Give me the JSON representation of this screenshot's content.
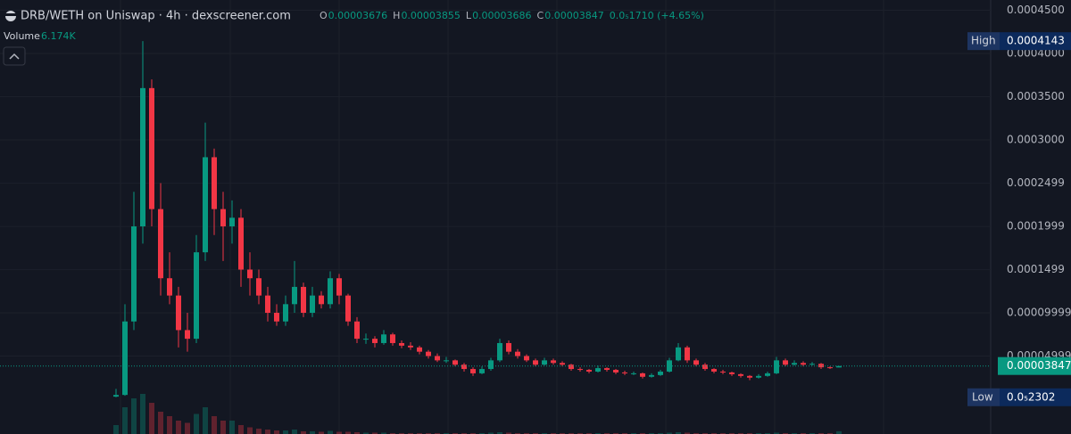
{
  "chart_data": {
    "type": "candlestick",
    "title": "DRB/WETH on Uniswap · 4h · dexscreener.com",
    "legend": {
      "open": {
        "label": "O",
        "value": 3.676e-05
      },
      "high": {
        "label": "H",
        "value": 3.855e-05
      },
      "low": {
        "label": "L",
        "value": 3.686e-05
      },
      "close": {
        "label": "C",
        "value": 3.847e-05
      },
      "change": "0.0₅1710 (+4.65%)"
    },
    "volume_label": {
      "name": "Volume",
      "value": "6.174K"
    },
    "ylim": [
      -4.02e-05,
      0.0004619
    ],
    "yticks": [
      {
        "value": 0.00045,
        "label": "0.0004500"
      },
      {
        "value": 0.0004,
        "label": "0.0004000"
      },
      {
        "value": 0.00035,
        "label": "0.0003500"
      },
      {
        "value": 0.0003,
        "label": "0.0003000"
      },
      {
        "value": 0.0002499,
        "label": "0.0002499"
      },
      {
        "value": 0.0001999,
        "label": "0.0001999"
      },
      {
        "value": 0.0001499,
        "label": "0.0001499"
      },
      {
        "value": 9.999e-05,
        "label": "0.00009999"
      },
      {
        "value": 4.999e-05,
        "label": "0.00004999"
      }
    ],
    "grid": true,
    "up_color": "#089981",
    "down_color": "#f23645",
    "markers": {
      "high": {
        "name": "High",
        "value": 0.0004143
      },
      "last": {
        "value": 3.847e-05
      },
      "low": {
        "name": "Low",
        "value": 2.302e-06,
        "value_label": "0.0₅2302"
      }
    },
    "vlim": [
      0,
      100
    ],
    "candles": [
      [
        3e-06,
        1.2e-05,
        2.302e-06,
        5e-06
      ],
      [
        5e-06,
        0.00011,
        4e-06,
        9e-05
      ],
      [
        9e-05,
        0.00024,
        8e-05,
        0.0002
      ],
      [
        0.0002,
        0.0004143,
        0.00018,
        0.00036
      ],
      [
        0.00036,
        0.00037,
        0.0002,
        0.00022
      ],
      [
        0.00022,
        0.00025,
        0.00012,
        0.00014
      ],
      [
        0.00014,
        0.00017,
        0.00011,
        0.00012
      ],
      [
        0.00012,
        0.00013,
        6e-05,
        8e-05
      ],
      [
        8e-05,
        0.0001,
        5.5e-05,
        7e-05
      ],
      [
        7e-05,
        0.00019,
        6.5e-05,
        0.00017
      ],
      [
        0.00017,
        0.00032,
        0.00016,
        0.00028
      ],
      [
        0.00028,
        0.00029,
        0.00019,
        0.00022
      ],
      [
        0.00022,
        0.00024,
        0.00016,
        0.0002
      ],
      [
        0.0002,
        0.00023,
        0.00018,
        0.00021
      ],
      [
        0.00021,
        0.00022,
        0.00013,
        0.00015
      ],
      [
        0.00015,
        0.00017,
        0.00012,
        0.00014
      ],
      [
        0.00014,
        0.00015,
        0.00011,
        0.00012
      ],
      [
        0.00012,
        0.00013,
        9e-05,
        0.0001
      ],
      [
        0.0001,
        0.00011,
        8.5e-05,
        9e-05
      ],
      [
        9e-05,
        0.00012,
        8.5e-05,
        0.00011
      ],
      [
        0.00011,
        0.00016,
        0.0001,
        0.00013
      ],
      [
        0.00013,
        0.000135,
        9.5e-05,
        0.0001
      ],
      [
        0.0001,
        0.00013,
        9.5e-05,
        0.00012
      ],
      [
        0.00012,
        0.000125,
        0.000105,
        0.00011
      ],
      [
        0.00011,
        0.000148,
        0.000105,
        0.00014
      ],
      [
        0.00014,
        0.000145,
        0.00011,
        0.00012
      ],
      [
        0.00012,
        0.000122,
        8.5e-05,
        9e-05
      ],
      [
        9e-05,
        9.5e-05,
        6.5e-05,
        7e-05
      ],
      [
        7e-05,
        7.6e-05,
        6.4e-05,
        7e-05
      ],
      [
        7e-05,
        7.3e-05,
        6e-05,
        6.5e-05
      ],
      [
        6.5e-05,
        8e-05,
        6.3e-05,
        7.5e-05
      ],
      [
        7.5e-05,
        7.7e-05,
        6.2e-05,
        6.5e-05
      ],
      [
        6.5e-05,
        6.8e-05,
        5.9e-05,
        6.2e-05
      ],
      [
        6.2e-05,
        6.6e-05,
        5.7e-05,
        6e-05
      ],
      [
        6e-05,
        6.2e-05,
        5.2e-05,
        5.5e-05
      ],
      [
        5.5e-05,
        5.7e-05,
        4.7e-05,
        5e-05
      ],
      [
        5e-05,
        5.3e-05,
        4.3e-05,
        4.5e-05
      ],
      [
        4.5e-05,
        4.9e-05,
        4.2e-05,
        4.5e-05
      ],
      [
        4.5e-05,
        4.6e-05,
        3.8e-05,
        4e-05
      ],
      [
        4e-05,
        4.2e-05,
        3.2e-05,
        3.5e-05
      ],
      [
        3.5e-05,
        3.7e-05,
        2.7e-05,
        3e-05
      ],
      [
        3e-05,
        3.8e-05,
        2.9e-05,
        3.5e-05
      ],
      [
        3.5e-05,
        4.8e-05,
        3.3e-05,
        4.5e-05
      ],
      [
        4.5e-05,
        7e-05,
        4.3e-05,
        6.5e-05
      ],
      [
        6.5e-05,
        6.8e-05,
        5.2e-05,
        5.5e-05
      ],
      [
        5.5e-05,
        5.8e-05,
        4.7e-05,
        5e-05
      ],
      [
        5e-05,
        5.2e-05,
        4.3e-05,
        4.5e-05
      ],
      [
        4.5e-05,
        4.7e-05,
        3.8e-05,
        4e-05
      ],
      [
        4e-05,
        4.8e-05,
        3.9e-05,
        4.5e-05
      ],
      [
        4.5e-05,
        4.7e-05,
        4e-05,
        4.2e-05
      ],
      [
        4.2e-05,
        4.4e-05,
        3.8e-05,
        4e-05
      ],
      [
        4e-05,
        4.1e-05,
        3.3e-05,
        3.5e-05
      ],
      [
        3.5e-05,
        3.7e-05,
        3.2e-05,
        3.4e-05
      ],
      [
        3.4e-05,
        3.5e-05,
        3e-05,
        3.2e-05
      ],
      [
        3.2e-05,
        3.9e-05,
        3.1e-05,
        3.6e-05
      ],
      [
        3.6e-05,
        3.7e-05,
        3.2e-05,
        3.4e-05
      ],
      [
        3.4e-05,
        3.5e-05,
        2.9e-05,
        3.1e-05
      ],
      [
        3.1e-05,
        3.3e-05,
        2.8e-05,
        3e-05
      ],
      [
        3e-05,
        3.2e-05,
        2.8e-05,
        3e-05
      ],
      [
        3e-05,
        3.1e-05,
        2.4e-05,
        2.6e-05
      ],
      [
        2.6e-05,
        3e-05,
        2.5e-05,
        2.8e-05
      ],
      [
        2.8e-05,
        3.4e-05,
        2.7e-05,
        3.2e-05
      ],
      [
        3.2e-05,
        4.8e-05,
        3.1e-05,
        4.5e-05
      ],
      [
        4.5e-05,
        6.5e-05,
        4.4e-05,
        6e-05
      ],
      [
        6e-05,
        6.2e-05,
        4.2e-05,
        4.5e-05
      ],
      [
        4.5e-05,
        4.7e-05,
        3.8e-05,
        4e-05
      ],
      [
        4e-05,
        4.2e-05,
        3.3e-05,
        3.5e-05
      ],
      [
        3.5e-05,
        3.6e-05,
        3e-05,
        3.2e-05
      ],
      [
        3.2e-05,
        3.4e-05,
        2.9e-05,
        3.1e-05
      ],
      [
        3.1e-05,
        3.2e-05,
        2.7e-05,
        2.9e-05
      ],
      [
        2.9e-05,
        3e-05,
        2.5e-05,
        2.7e-05
      ],
      [
        2.7e-05,
        2.8e-05,
        2.2e-05,
        2.5e-05
      ],
      [
        2.5e-05,
        2.9e-05,
        2.4e-05,
        2.7e-05
      ],
      [
        2.7e-05,
        3.2e-05,
        2.6e-05,
        3e-05
      ],
      [
        3e-05,
        4.9e-05,
        2.9e-05,
        4.5e-05
      ],
      [
        4.5e-05,
        4.7e-05,
        3.8e-05,
        4e-05
      ],
      [
        4e-05,
        4.5e-05,
        3.9e-05,
        4.2e-05
      ],
      [
        4.2e-05,
        4.4e-05,
        3.8e-05,
        4e-05
      ],
      [
        4e-05,
        4.3e-05,
        3.9e-05,
        4.1e-05
      ],
      [
        4.1e-05,
        4.2e-05,
        3.5e-05,
        3.7e-05
      ],
      [
        3.7e-05,
        3.8e-05,
        3.5e-05,
        3.676e-05
      ],
      [
        3.676e-05,
        3.855e-05,
        3.686e-05,
        3.847e-05
      ]
    ],
    "volumes": [
      20,
      60,
      80,
      90,
      70,
      50,
      40,
      30,
      25,
      45,
      60,
      40,
      30,
      30,
      20,
      15,
      12,
      10,
      8,
      8,
      10,
      6,
      6,
      5,
      7,
      5,
      5,
      4,
      3,
      3,
      3,
      2,
      2,
      2,
      2,
      2,
      2,
      2,
      2,
      2,
      2,
      2,
      3,
      4,
      3,
      2,
      2,
      2,
      2,
      2,
      2,
      2,
      2,
      2,
      2,
      2,
      2,
      2,
      2,
      2,
      2,
      2,
      3,
      4,
      3,
      2,
      2,
      2,
      2,
      2,
      2,
      2,
      2,
      2,
      3,
      2,
      2,
      2,
      2,
      2,
      2,
      6.174
    ]
  }
}
